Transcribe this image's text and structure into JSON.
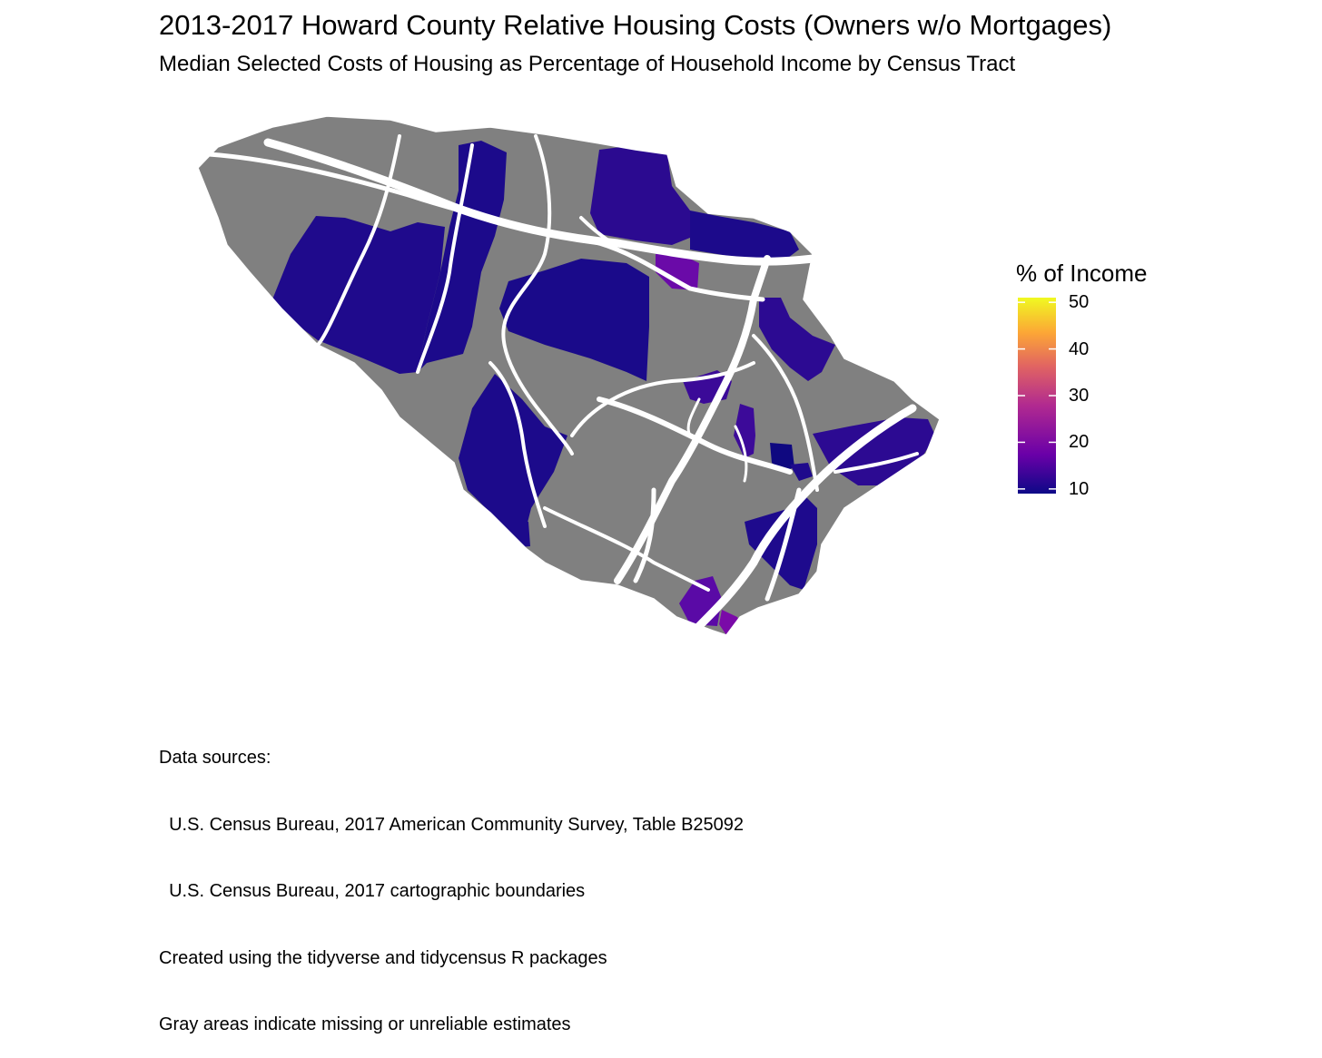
{
  "title": "2013-2017 Howard County Relative Housing Costs (Owners w/o Mortgages)",
  "subtitle": "Median Selected Costs of Housing as Percentage of Household Income by Census Tract",
  "legend": {
    "title": "% of Income",
    "ticks": [
      "50",
      "40",
      "30",
      "20",
      "10"
    ],
    "range": [
      9,
      51
    ],
    "colors": [
      "#0d0887",
      "#6a00a8",
      "#b12a90",
      "#e16462",
      "#fca636",
      "#f0f921"
    ]
  },
  "map": {
    "missing_color": "#808080",
    "road_color": "#ffffff"
  },
  "caption": {
    "lines": [
      "Data sources:",
      "  U.S. Census Bureau, 2017 American Community Survey, Table B25092",
      "  U.S. Census Bureau, 2017 cartographic boundaries",
      "Created using the tidyverse and tidycensus R packages",
      "Gray areas indicate missing or unreliable estimates"
    ]
  }
}
